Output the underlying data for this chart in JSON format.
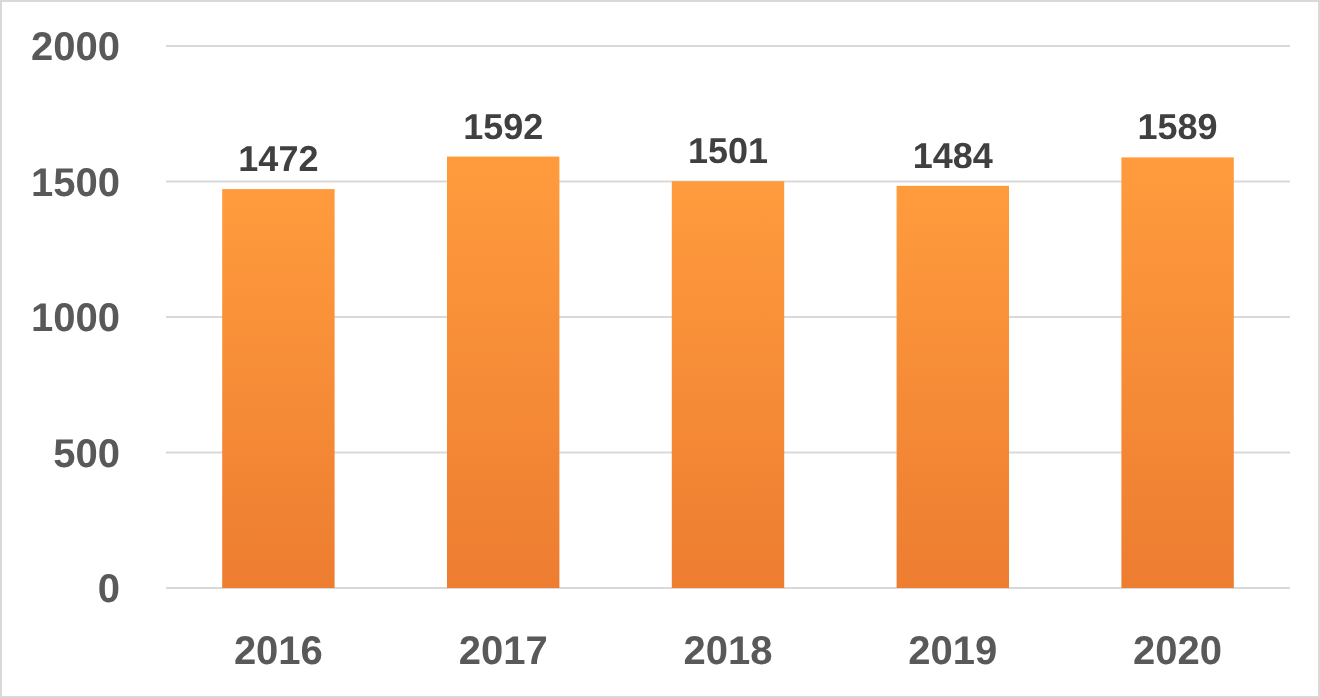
{
  "chart_data": {
    "type": "bar",
    "categories": [
      "2016",
      "2017",
      "2018",
      "2019",
      "2020"
    ],
    "values": [
      1472,
      1592,
      1501,
      1484,
      1589
    ],
    "color": "#ed7d31",
    "ylim": [
      0,
      2000
    ],
    "yticks": [
      0,
      500,
      1000,
      1500,
      2000
    ],
    "grid": "y",
    "data_labels": true
  }
}
